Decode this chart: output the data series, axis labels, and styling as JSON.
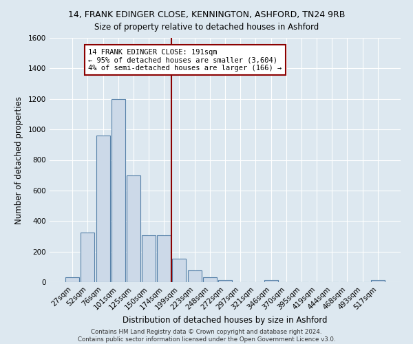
{
  "title": "14, FRANK EDINGER CLOSE, KENNINGTON, ASHFORD, TN24 9RB",
  "subtitle": "Size of property relative to detached houses in Ashford",
  "xlabel": "Distribution of detached houses by size in Ashford",
  "ylabel": "Number of detached properties",
  "bins": [
    "27sqm",
    "52sqm",
    "76sqm",
    "101sqm",
    "125sqm",
    "150sqm",
    "174sqm",
    "199sqm",
    "223sqm",
    "248sqm",
    "272sqm",
    "297sqm",
    "321sqm",
    "346sqm",
    "370sqm",
    "395sqm",
    "419sqm",
    "444sqm",
    "468sqm",
    "493sqm",
    "517sqm"
  ],
  "counts": [
    30,
    325,
    960,
    1200,
    700,
    305,
    305,
    155,
    75,
    30,
    15,
    0,
    0,
    15,
    0,
    0,
    0,
    0,
    0,
    0,
    15
  ],
  "bar_color": "#ccd9e8",
  "bar_edge_color": "#5580a8",
  "vline_x_index": 7,
  "vline_color": "#8b0000",
  "annotation_line1": "14 FRANK EDINGER CLOSE: 191sqm",
  "annotation_line2": "← 95% of detached houses are smaller (3,604)",
  "annotation_line3": "4% of semi-detached houses are larger (166) →",
  "annotation_box_color": "#ffffff",
  "annotation_box_edge": "#8b0000",
  "ylim": [
    0,
    1600
  ],
  "yticks": [
    0,
    200,
    400,
    600,
    800,
    1000,
    1200,
    1400,
    1600
  ],
  "footer1": "Contains HM Land Registry data © Crown copyright and database right 2024.",
  "footer2": "Contains public sector information licensed under the Open Government Licence v3.0.",
  "bg_color": "#dde8f0",
  "plot_bg_color": "#dde8f0",
  "grid_color": "#ffffff",
  "title_fontsize": 9,
  "subtitle_fontsize": 8.5,
  "tick_fontsize": 7.5,
  "label_fontsize": 8.5
}
